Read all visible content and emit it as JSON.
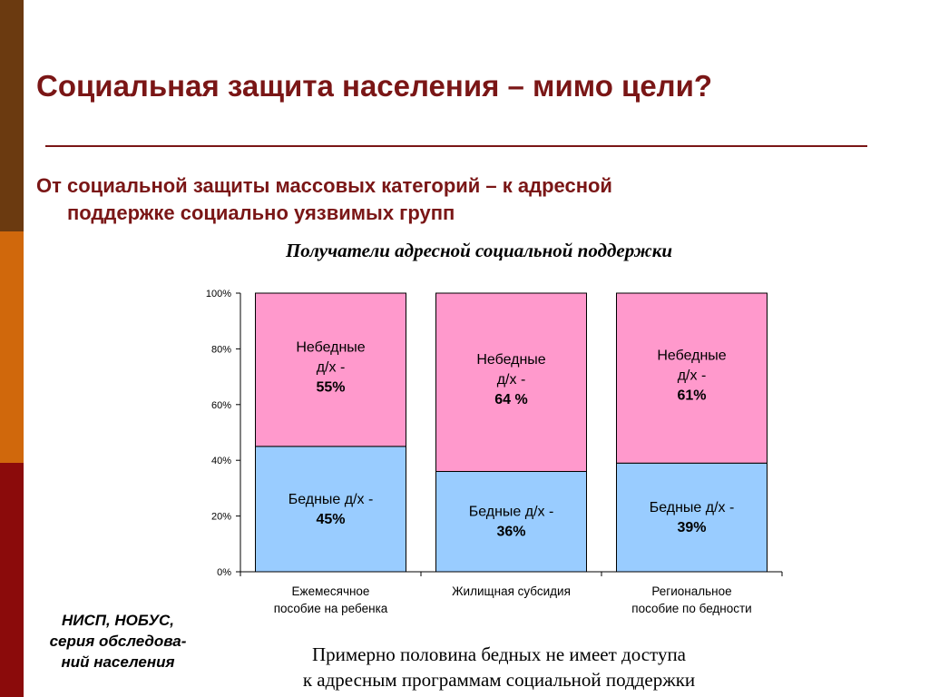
{
  "slide": {
    "title": "Социальная защита населения – мимо цели?",
    "subtitle_line1": "От социальной защиты массовых категорий – к адресной",
    "subtitle_line2": "поддержке социально уязвимых групп",
    "source_lines": [
      "НИСП, НОБУС,",
      "серия обследова-",
      "ний населения"
    ],
    "conclusion_lines": [
      "Примерно половина бедных не имеет доступа",
      "к адресным программам социальной поддержки"
    ],
    "colors": {
      "title": "#7a1616",
      "band_top": "#6b3a10",
      "band_mid": "#d0680c",
      "band_bottom": "#8b0b0b"
    }
  },
  "chart_data": {
    "type": "bar",
    "stacked": true,
    "title": "Получатели адресной социальной поддержки",
    "categories": [
      [
        "Ежемесячное",
        "пособие на ребенка"
      ],
      [
        "Жилищная субсидия"
      ],
      [
        "Региональное",
        "пособие по бедности"
      ]
    ],
    "series": [
      {
        "name": "Бедные д/х -",
        "values": [
          45,
          36,
          39
        ],
        "labels": [
          "45%",
          "36%",
          "39%"
        ],
        "color": "#99ccff"
      },
      {
        "name": "Небедные д/х -",
        "values": [
          55,
          64,
          61
        ],
        "labels": [
          "55%",
          "64 %",
          "61%"
        ],
        "color": "#ff99cc"
      }
    ],
    "yticks": [
      "0%",
      "20%",
      "40%",
      "60%",
      "80%",
      "100%"
    ],
    "ylim": [
      0,
      100
    ],
    "grid": false,
    "legend": "none"
  }
}
